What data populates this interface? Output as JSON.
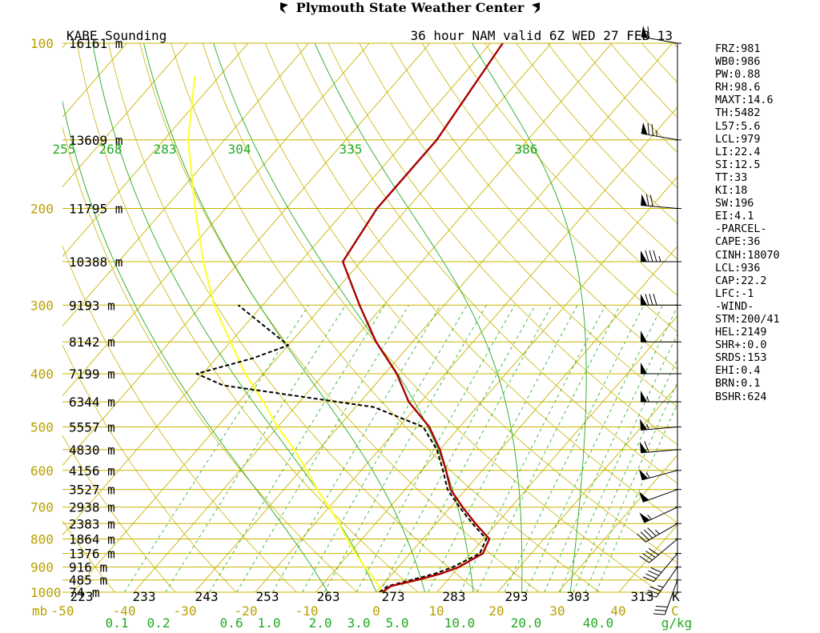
{
  "header": {
    "title": "Plymouth State Weather Center"
  },
  "chart_data": {
    "type": "line",
    "station_title": "KABE Sounding",
    "valid_title": "36 hour NAM valid 6Z WED 27 FEB 13",
    "colors": {
      "temperature": "#aa0000",
      "dewpoint": "#000000",
      "parcel": "#ffff33",
      "isotherm_isobar": "#c8b400",
      "dry_adiabat": "#c8b400",
      "moist_adiabat": "#22aa22",
      "mixing_ratio": "#22aa22"
    },
    "pressure_levels": [
      {
        "p": 100,
        "label": "100",
        "hlabel": "16161 m"
      },
      {
        "p": 150,
        "label": "",
        "hlabel": "13609 m"
      },
      {
        "p": 200,
        "label": "200",
        "hlabel": "11795 m"
      },
      {
        "p": 250,
        "label": "",
        "hlabel": "10388 m"
      },
      {
        "p": 300,
        "label": "300",
        "hlabel": "9193 m"
      },
      {
        "p": 350,
        "label": "",
        "hlabel": "8142 m"
      },
      {
        "p": 400,
        "label": "400",
        "hlabel": "7199 m"
      },
      {
        "p": 450,
        "label": "",
        "hlabel": "6344 m"
      },
      {
        "p": 500,
        "label": "500",
        "hlabel": "5557 m"
      },
      {
        "p": 550,
        "label": "",
        "hlabel": "4830 m"
      },
      {
        "p": 600,
        "label": "600",
        "hlabel": "4156 m"
      },
      {
        "p": 650,
        "label": "",
        "hlabel": "3527 m"
      },
      {
        "p": 700,
        "label": "700",
        "hlabel": "2938 m"
      },
      {
        "p": 750,
        "label": "",
        "hlabel": "2383 m"
      },
      {
        "p": 800,
        "label": "800",
        "hlabel": "1864 m"
      },
      {
        "p": 850,
        "label": "",
        "hlabel": "1376 m"
      },
      {
        "p": 900,
        "label": "900",
        "hlabel": "916 m"
      },
      {
        "p": 950,
        "label": "",
        "hlabel": "485 m"
      },
      {
        "p": 1000,
        "label": "1000",
        "hlabel": "74 m"
      }
    ],
    "temperature_ticks": [
      "-50",
      "-40",
      "-30",
      "-20",
      "-10",
      "0",
      "10",
      "20",
      "30",
      "40",
      "C"
    ],
    "pressure_unit_label": "mb",
    "kelvin_ticks": [
      "223",
      "233",
      "243",
      "253",
      "263",
      "273",
      "283",
      "293",
      "303",
      "313",
      "K"
    ],
    "mixing_ratio_ticks": [
      "0.1",
      "0.2",
      "0.6",
      "1.0",
      "2.0",
      "3.0",
      "5.0",
      "10.0",
      "20.0",
      "40.0",
      "g/kg"
    ],
    "theta_e_labels": [
      "255",
      "268",
      "283",
      "304",
      "335",
      "386"
    ],
    "temperature_profile": [
      {
        "p": 1000,
        "t": 1.0
      },
      {
        "p": 975,
        "t": 1.5
      },
      {
        "p": 950,
        "t": 5.0
      },
      {
        "p": 925,
        "t": 8.0
      },
      {
        "p": 900,
        "t": 10.0
      },
      {
        "p": 850,
        "t": 12.0
      },
      {
        "p": 800,
        "t": 11.0
      },
      {
        "p": 750,
        "t": 6.5
      },
      {
        "p": 700,
        "t": 2.0
      },
      {
        "p": 650,
        "t": -2.5
      },
      {
        "p": 600,
        "t": -6.0
      },
      {
        "p": 550,
        "t": -10.0
      },
      {
        "p": 500,
        "t": -15.0
      },
      {
        "p": 450,
        "t": -22.0
      },
      {
        "p": 400,
        "t": -28.0
      },
      {
        "p": 350,
        "t": -36.0
      },
      {
        "p": 300,
        "t": -44.0
      },
      {
        "p": 250,
        "t": -53.0
      },
      {
        "p": 200,
        "t": -55.0
      },
      {
        "p": 150,
        "t": -55.0
      },
      {
        "p": 100,
        "t": -58.0
      }
    ],
    "dewpoint_profile": [
      {
        "p": 1000,
        "t": 0.5
      },
      {
        "p": 975,
        "t": 1.0
      },
      {
        "p": 950,
        "t": 4.0
      },
      {
        "p": 925,
        "t": 7.0
      },
      {
        "p": 900,
        "t": 9.0
      },
      {
        "p": 850,
        "t": 11.5
      },
      {
        "p": 800,
        "t": 10.5
      },
      {
        "p": 750,
        "t": 6.0
      },
      {
        "p": 700,
        "t": 1.5
      },
      {
        "p": 650,
        "t": -3.0
      },
      {
        "p": 600,
        "t": -6.5
      },
      {
        "p": 550,
        "t": -10.5
      },
      {
        "p": 500,
        "t": -16.0
      },
      {
        "p": 460,
        "t": -27.0
      },
      {
        "p": 420,
        "t": -55.0
      },
      {
        "p": 400,
        "t": -61.0
      },
      {
        "p": 375,
        "t": -54.0
      },
      {
        "p": 355,
        "t": -50.0
      },
      {
        "p": 300,
        "t": -64.0
      }
    ],
    "parcel_profile": [
      {
        "p": 1000,
        "t": 1.0
      },
      {
        "p": 950,
        "t": -2.0
      },
      {
        "p": 900,
        "t": -5.5
      },
      {
        "p": 850,
        "t": -9.0
      },
      {
        "p": 800,
        "t": -12.5
      },
      {
        "p": 750,
        "t": -16.0
      },
      {
        "p": 700,
        "t": -20.0
      },
      {
        "p": 650,
        "t": -24.5
      },
      {
        "p": 600,
        "t": -29.0
      },
      {
        "p": 550,
        "t": -34.0
      },
      {
        "p": 500,
        "t": -40.0
      },
      {
        "p": 450,
        "t": -46.0
      },
      {
        "p": 400,
        "t": -53.0
      },
      {
        "p": 350,
        "t": -60.0
      },
      {
        "p": 300,
        "t": -68.0
      },
      {
        "p": 250,
        "t": -76.0
      },
      {
        "p": 200,
        "t": -85.0
      },
      {
        "p": 150,
        "t": -96.0
      },
      {
        "p": 115,
        "t": -104.0
      }
    ],
    "wind_profile": [
      {
        "p": 100,
        "dir": 280,
        "spd": 60
      },
      {
        "p": 150,
        "dir": 280,
        "spd": 75
      },
      {
        "p": 200,
        "dir": 275,
        "spd": 70
      },
      {
        "p": 250,
        "dir": 270,
        "spd": 85
      },
      {
        "p": 300,
        "dir": 270,
        "spd": 80
      },
      {
        "p": 350,
        "dir": 270,
        "spd": 50
      },
      {
        "p": 400,
        "dir": 270,
        "spd": 50
      },
      {
        "p": 450,
        "dir": 270,
        "spd": 55
      },
      {
        "p": 500,
        "dir": 265,
        "spd": 55
      },
      {
        "p": 550,
        "dir": 265,
        "spd": 60
      },
      {
        "p": 600,
        "dir": 255,
        "spd": 55
      },
      {
        "p": 650,
        "dir": 250,
        "spd": 50
      },
      {
        "p": 700,
        "dir": 245,
        "spd": 55
      },
      {
        "p": 750,
        "dir": 240,
        "spd": 45
      },
      {
        "p": 800,
        "dir": 230,
        "spd": 40
      },
      {
        "p": 850,
        "dir": 220,
        "spd": 40
      },
      {
        "p": 900,
        "dir": 215,
        "spd": 35
      },
      {
        "p": 950,
        "dir": 200,
        "spd": 30
      }
    ],
    "indices": [
      "FRZ:981",
      "WB0:986",
      "PW:0.88",
      "RH:98.6",
      "MAXT:14.6",
      "TH:5482",
      "L57:5.6",
      "LCL:979",
      "LI:22.4",
      "SI:12.5",
      "TT:33",
      "KI:18",
      "SW:196",
      "EI:4.1",
      "-PARCEL-",
      "CAPE:36",
      "CINH:18070",
      "LCL:936",
      "CAP:22.2",
      "LFC:-1",
      "-WIND-",
      "STM:200/41",
      "HEL:2149",
      "SHR+:0.0",
      "SRDS:153",
      "EHI:0.4",
      "BRN:0.1",
      "BSHR:624"
    ]
  }
}
